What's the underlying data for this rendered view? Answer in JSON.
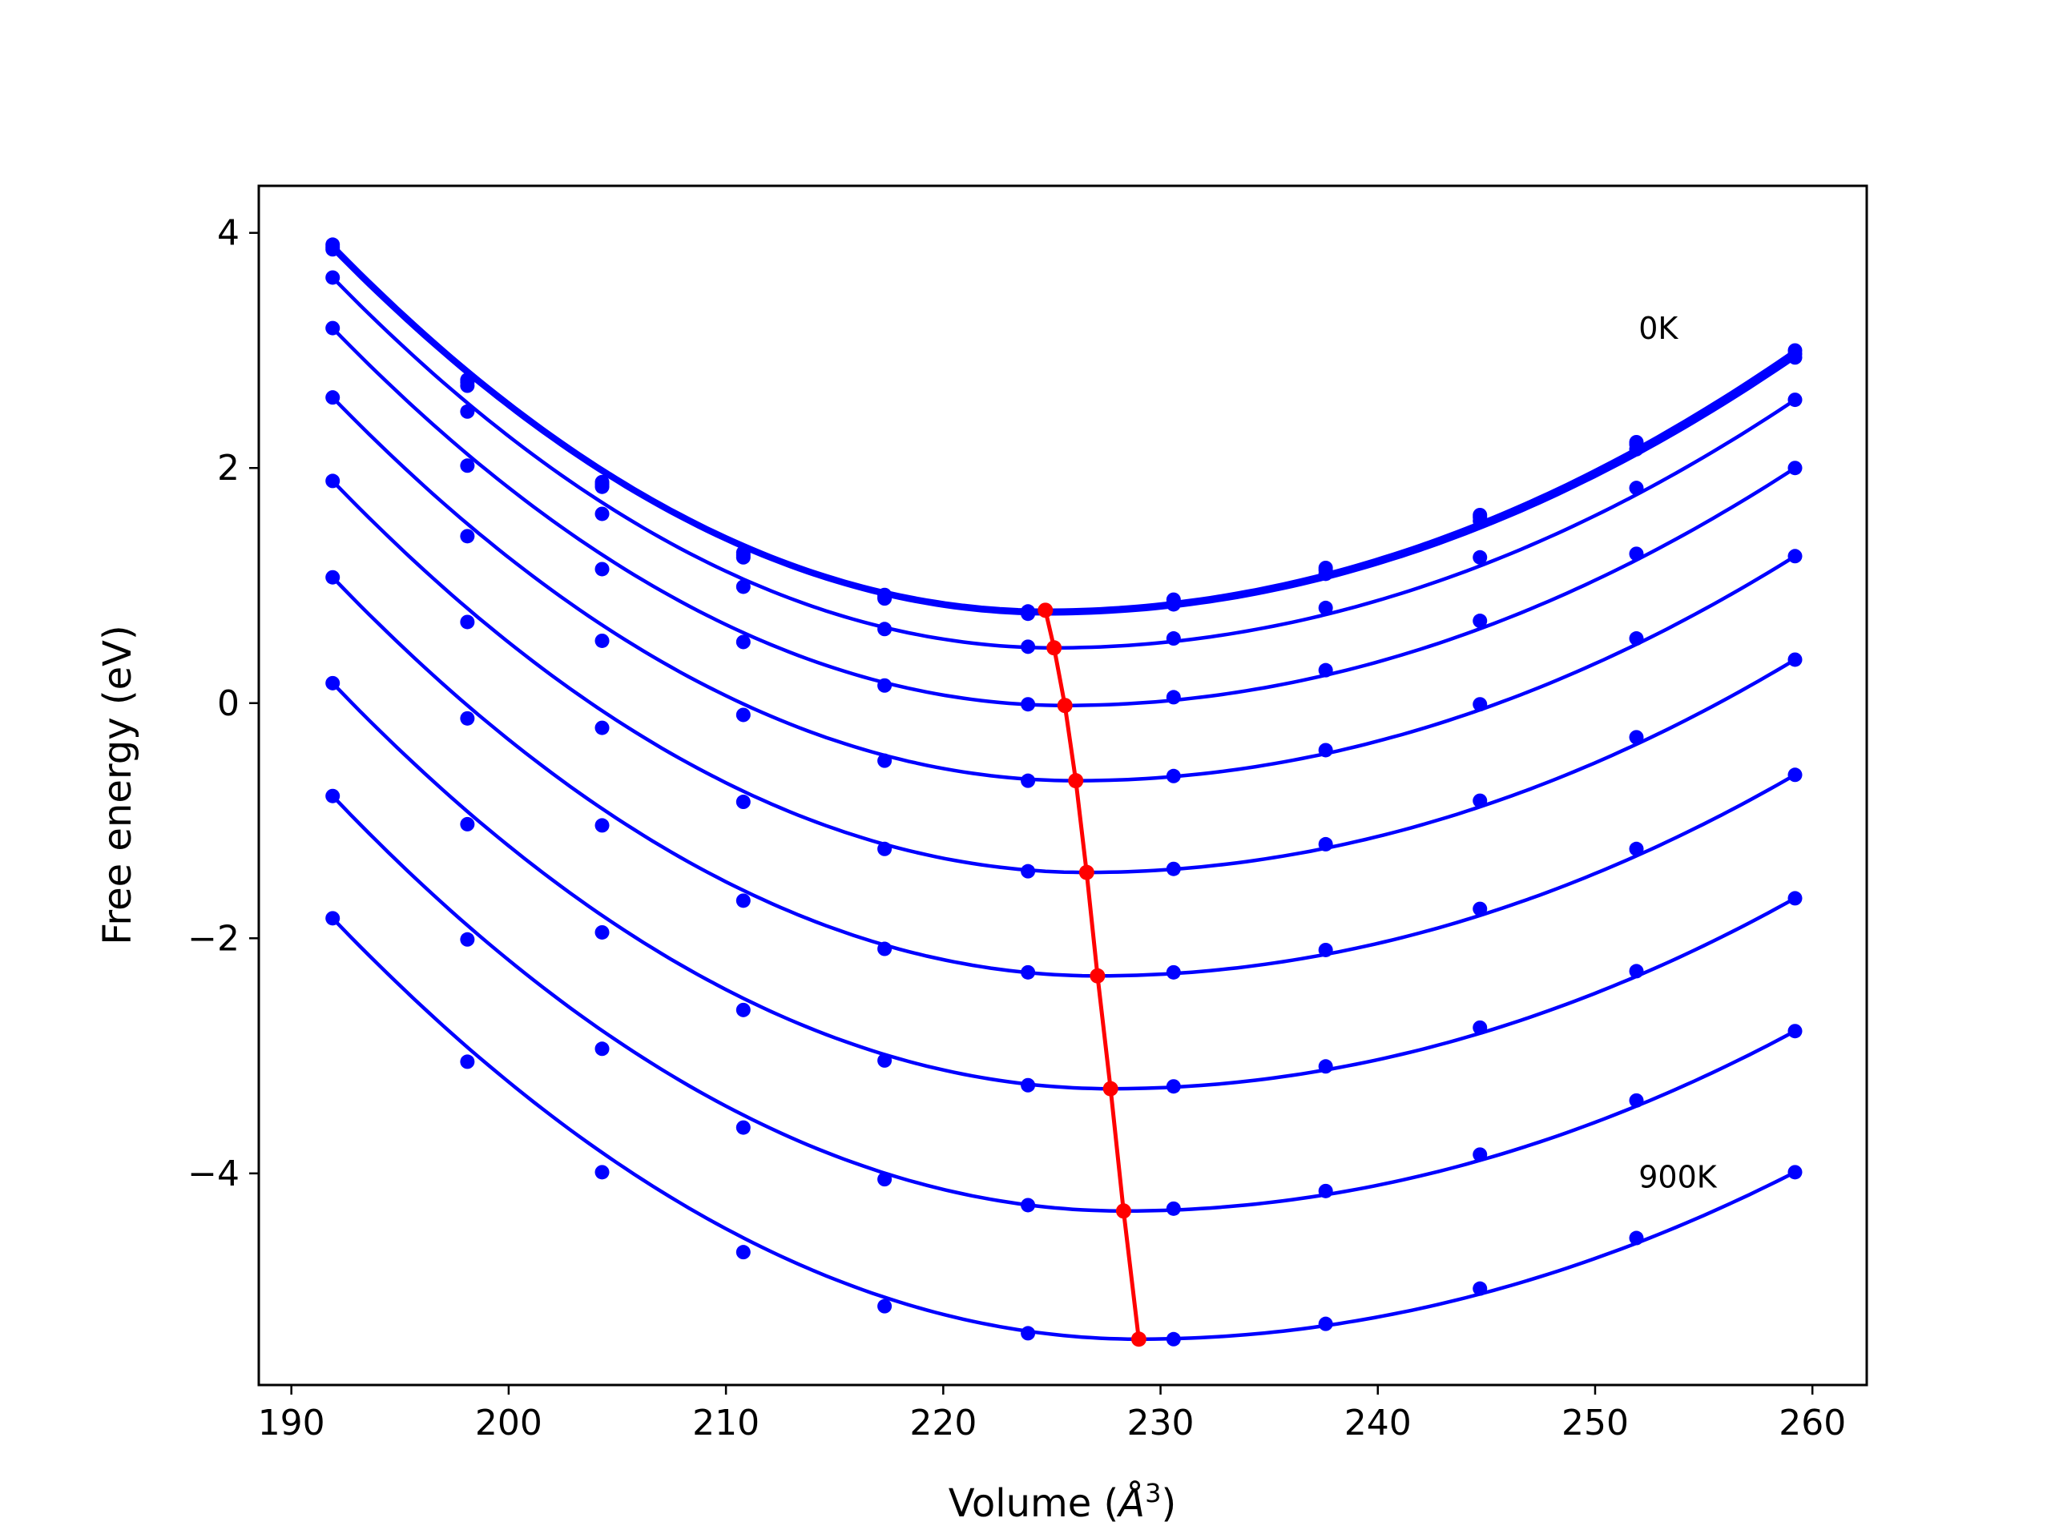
{
  "chart_data": {
    "type": "line",
    "title": "",
    "xlabel": "Volume (",
    "xlabel_symbol": "Å",
    "xlabel_sup": "3",
    "xlabel_close": ")",
    "ylabel": "Free energy (eV)",
    "xlim": [
      188.5,
      262.5
    ],
    "ylim": [
      -5.8,
      4.4
    ],
    "xticks": [
      190,
      200,
      210,
      220,
      230,
      240,
      250,
      260
    ],
    "yticks": [
      4,
      2,
      0,
      -2,
      -4
    ],
    "xtick_labels": [
      "190",
      "200",
      "210",
      "220",
      "230",
      "240",
      "250",
      "260"
    ],
    "ytick_labels": [
      "4",
      "2",
      "0",
      "−2",
      "−4"
    ],
    "grid": false,
    "annotations": [
      {
        "text": "0K",
        "x": 252,
        "y": 3.1
      },
      {
        "text": "900K",
        "x": 252,
        "y": -4.12
      }
    ],
    "x": [
      191.9,
      198.1,
      204.3,
      210.8,
      217.3,
      223.9,
      230.6,
      237.6,
      244.7,
      251.9,
      259.2
    ],
    "series": [
      {
        "color": "#0000ff",
        "values": [
          3.9,
          2.75,
          1.88,
          1.28,
          0.92,
          0.78,
          0.88,
          1.15,
          1.6,
          2.22,
          3.0
        ],
        "vmin": 224.7,
        "emin": 0.79
      },
      {
        "color": "#0000ff",
        "values": [
          3.88,
          2.73,
          1.86,
          1.26,
          0.9,
          0.77,
          0.86,
          1.13,
          1.58,
          2.2,
          2.97
        ],
        "vmin": 224.8,
        "emin": 0.78
      },
      {
        "color": "#0000ff",
        "values": [
          3.86,
          2.7,
          1.84,
          1.24,
          0.89,
          0.76,
          0.84,
          1.1,
          1.55,
          2.16,
          2.94
        ],
        "vmin": 224.8,
        "emin": 0.76
      },
      {
        "color": "#0000ff",
        "values": [
          3.62,
          2.48,
          1.61,
          0.99,
          0.63,
          0.48,
          0.55,
          0.81,
          1.24,
          1.83,
          2.58
        ],
        "vmin": 225.1,
        "emin": 0.47
      },
      {
        "color": "#0000ff",
        "values": [
          3.19,
          2.02,
          1.14,
          0.52,
          0.15,
          -0.01,
          0.05,
          0.28,
          0.7,
          1.27,
          2.0
        ],
        "vmin": 225.6,
        "emin": -0.02
      },
      {
        "color": "#0000ff",
        "values": [
          2.6,
          1.42,
          0.53,
          -0.1,
          -0.49,
          -0.66,
          -0.62,
          -0.4,
          -0.01,
          0.55,
          1.25
        ],
        "vmin": 226.1,
        "emin": -0.66
      },
      {
        "color": "#0000ff",
        "values": [
          1.89,
          0.69,
          -0.21,
          -0.84,
          -1.24,
          -1.43,
          -1.41,
          -1.2,
          -0.83,
          -0.29,
          0.37
        ],
        "vmin": 226.6,
        "emin": -1.44
      },
      {
        "color": "#0000ff",
        "values": [
          1.07,
          -0.13,
          -1.04,
          -1.68,
          -2.09,
          -2.29,
          -2.29,
          -2.1,
          -1.75,
          -1.24,
          -0.61
        ],
        "vmin": 227.1,
        "emin": -2.32
      },
      {
        "color": "#0000ff",
        "values": [
          0.17,
          -1.03,
          -1.95,
          -2.61,
          -3.04,
          -3.25,
          -3.26,
          -3.09,
          -2.76,
          -2.28,
          -1.66
        ],
        "vmin": 227.7,
        "emin": -3.28
      },
      {
        "color": "#0000ff",
        "values": [
          -0.79,
          -2.01,
          -2.94,
          -3.61,
          -4.05,
          -4.27,
          -4.3,
          -4.15,
          -3.84,
          -3.38,
          -2.79
        ],
        "vmin": 228.3,
        "emin": -4.32
      },
      {
        "color": "#0000ff",
        "values": [
          -1.83,
          -3.05,
          -3.99,
          -4.67,
          -5.13,
          -5.36,
          -5.41,
          -5.28,
          -4.98,
          -4.55,
          -3.99
        ],
        "vmin": 229.0,
        "emin": -5.41
      }
    ],
    "equilibrium": {
      "color": "#ff0000",
      "x": [
        224.7,
        225.1,
        225.6,
        226.1,
        226.6,
        227.1,
        227.7,
        228.3,
        229.0
      ],
      "values": [
        0.79,
        0.47,
        -0.02,
        -0.66,
        -1.44,
        -2.32,
        -3.28,
        -4.32,
        -5.41
      ]
    }
  }
}
